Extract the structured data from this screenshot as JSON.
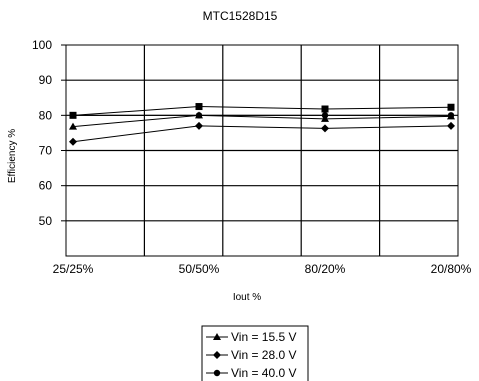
{
  "chart_data": {
    "type": "line",
    "title": "MTC1528D15",
    "xlabel": "Iout %",
    "ylabel": "Efficiency %",
    "categories": [
      "25/25%",
      "50/50%",
      "80/20%",
      "20/80%"
    ],
    "ylim": [
      40,
      100
    ],
    "yticks": [
      50,
      60,
      70,
      80,
      90,
      100
    ],
    "grid": true,
    "legend_position": "bottom",
    "series": [
      {
        "name": "Vin = 15.5 V",
        "marker": "triangle",
        "values": [
          76.8,
          80.0,
          79.0,
          79.7
        ]
      },
      {
        "name": "Vin = 28.0 V",
        "marker": "diamond",
        "values": [
          72.5,
          77.0,
          76.3,
          77.0
        ]
      },
      {
        "name": "Vin = 40.0 V",
        "marker": "circle",
        "values": [
          80.0,
          80.0,
          80.0,
          80.0
        ]
      },
      {
        "name": "",
        "marker": "square",
        "values": [
          80.0,
          82.5,
          81.8,
          82.3
        ]
      }
    ]
  }
}
